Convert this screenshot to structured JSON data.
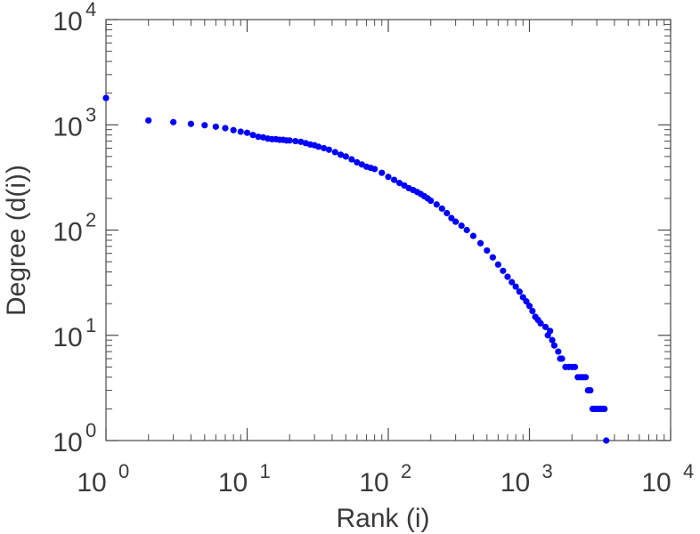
{
  "chart_data": {
    "type": "scatter",
    "xlabel": "Rank (i)",
    "ylabel": "Degree (d(i))",
    "x_scale": "log",
    "y_scale": "log",
    "xlim": [
      1,
      10000
    ],
    "ylim": [
      1,
      10000
    ],
    "x_tick_labels": [
      {
        "base": "10",
        "exp": "0"
      },
      {
        "base": "10",
        "exp": "1"
      },
      {
        "base": "10",
        "exp": "2"
      },
      {
        "base": "10",
        "exp": "3"
      },
      {
        "base": "10",
        "exp": "4"
      }
    ],
    "y_tick_labels": [
      {
        "base": "10",
        "exp": "0"
      },
      {
        "base": "10",
        "exp": "1"
      },
      {
        "base": "10",
        "exp": "2"
      },
      {
        "base": "10",
        "exp": "3"
      },
      {
        "base": "10",
        "exp": "4"
      }
    ],
    "marker_color": "#0000ff",
    "grid": false,
    "points": [
      [
        1,
        1800
      ],
      [
        2,
        1100
      ],
      [
        3,
        1060
      ],
      [
        4,
        1020
      ],
      [
        5,
        990
      ],
      [
        6,
        960
      ],
      [
        7,
        930
      ],
      [
        8,
        890
      ],
      [
        9,
        860
      ],
      [
        10,
        840
      ],
      [
        11,
        800
      ],
      [
        12,
        770
      ],
      [
        13,
        760
      ],
      [
        14,
        740
      ],
      [
        15,
        730
      ],
      [
        16,
        730
      ],
      [
        17,
        720
      ],
      [
        18,
        720
      ],
      [
        19,
        710
      ],
      [
        20,
        710
      ],
      [
        22,
        700
      ],
      [
        24,
        690
      ],
      [
        26,
        670
      ],
      [
        28,
        650
      ],
      [
        30,
        640
      ],
      [
        32,
        620
      ],
      [
        35,
        600
      ],
      [
        38,
        580
      ],
      [
        42,
        550
      ],
      [
        46,
        520
      ],
      [
        50,
        500
      ],
      [
        55,
        470
      ],
      [
        60,
        440
      ],
      [
        65,
        420
      ],
      [
        70,
        400
      ],
      [
        75,
        390
      ],
      [
        80,
        380
      ],
      [
        90,
        350
      ],
      [
        100,
        320
      ],
      [
        110,
        300
      ],
      [
        120,
        280
      ],
      [
        130,
        265
      ],
      [
        140,
        250
      ],
      [
        150,
        240
      ],
      [
        160,
        230
      ],
      [
        170,
        220
      ],
      [
        180,
        210
      ],
      [
        190,
        200
      ],
      [
        200,
        190
      ],
      [
        220,
        175
      ],
      [
        240,
        160
      ],
      [
        260,
        145
      ],
      [
        280,
        130
      ],
      [
        300,
        120
      ],
      [
        330,
        110
      ],
      [
        360,
        100
      ],
      [
        400,
        88
      ],
      [
        450,
        75
      ],
      [
        500,
        64
      ],
      [
        550,
        55
      ],
      [
        600,
        47
      ],
      [
        650,
        41
      ],
      [
        700,
        36
      ],
      [
        750,
        32
      ],
      [
        800,
        29
      ],
      [
        850,
        26
      ],
      [
        900,
        23
      ],
      [
        950,
        21
      ],
      [
        1000,
        19
      ],
      [
        1050,
        17
      ],
      [
        1100,
        15
      ],
      [
        1150,
        14
      ],
      [
        1200,
        13
      ],
      [
        1300,
        12
      ],
      [
        1350,
        10
      ],
      [
        1400,
        11
      ],
      [
        1450,
        9
      ],
      [
        1500,
        8
      ],
      [
        1600,
        7
      ],
      [
        1650,
        6
      ],
      [
        1700,
        6
      ],
      [
        1800,
        5
      ],
      [
        1900,
        5
      ],
      [
        2000,
        5
      ],
      [
        2100,
        5
      ],
      [
        2200,
        4
      ],
      [
        2300,
        4
      ],
      [
        2400,
        4
      ],
      [
        2500,
        4
      ],
      [
        2600,
        3
      ],
      [
        2700,
        3
      ],
      [
        2800,
        2
      ],
      [
        2900,
        2
      ],
      [
        3000,
        2
      ],
      [
        3100,
        2
      ],
      [
        3200,
        2
      ],
      [
        3300,
        2
      ],
      [
        3400,
        2
      ],
      [
        3500,
        1
      ]
    ]
  }
}
